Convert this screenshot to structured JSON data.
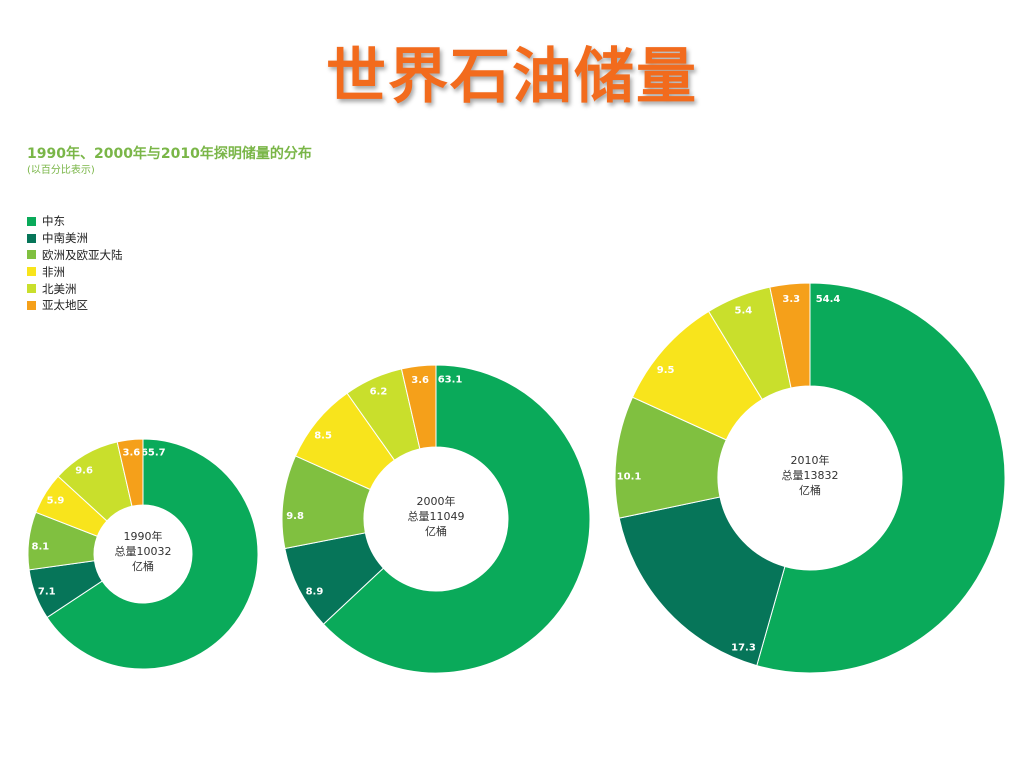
{
  "slide_title": "世界石油储量",
  "chart_title": "1990年、2000年与2010年探明储量的分布",
  "chart_subtitle": "(以百分比表示)",
  "legend": [
    {
      "label": "中东",
      "color": "#0aaa5a"
    },
    {
      "label": "中南美洲",
      "color": "#067559"
    },
    {
      "label": "欧洲及欧亚大陆",
      "color": "#80c040"
    },
    {
      "label": "非洲",
      "color": "#f8e41c"
    },
    {
      "label": "北美洲",
      "color": "#c9df2c"
    },
    {
      "label": "亚太地区",
      "color": "#f5a01a"
    }
  ],
  "chart_data": [
    {
      "type": "pie",
      "categories": [
        "中东",
        "中南美洲",
        "欧洲及欧亚大陆",
        "非洲",
        "北美洲",
        "亚太地区"
      ],
      "values": [
        65.7,
        7.1,
        8.1,
        5.9,
        9.6,
        3.6
      ],
      "center_lines": [
        "1990年",
        "总量10032",
        "亿桶"
      ]
    },
    {
      "type": "pie",
      "categories": [
        "中东",
        "中南美洲",
        "欧洲及欧亚大陆",
        "非洲",
        "北美洲",
        "亚太地区"
      ],
      "values": [
        63.1,
        8.9,
        9.8,
        8.5,
        6.2,
        3.6
      ],
      "center_lines": [
        "2000年",
        "总量11049",
        "亿桶"
      ]
    },
    {
      "type": "pie",
      "categories": [
        "中东",
        "中南美洲",
        "欧洲及欧亚大陆",
        "非洲",
        "北美洲",
        "亚太地区"
      ],
      "values": [
        54.4,
        17.3,
        10.1,
        9.5,
        5.4,
        3.3
      ],
      "center_lines": [
        "2010年",
        "总量13832",
        "亿桶"
      ]
    }
  ]
}
